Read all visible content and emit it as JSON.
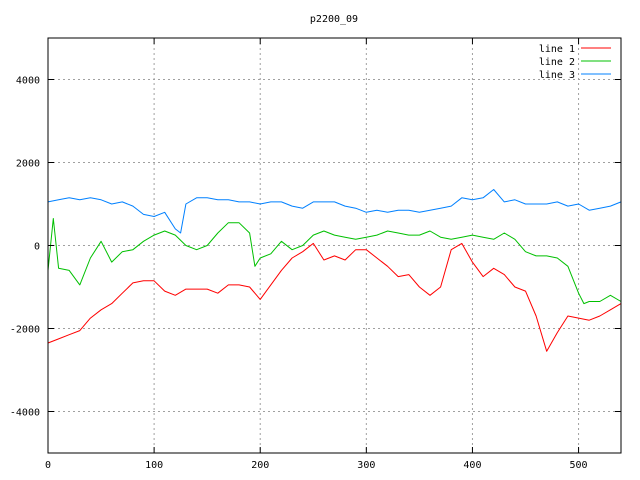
{
  "chart_data": {
    "type": "line",
    "title": "p2200_09",
    "xlabel": "",
    "ylabel": "",
    "xlim": [
      0,
      540
    ],
    "ylim": [
      -5000,
      5000
    ],
    "xticks": [
      0,
      100,
      200,
      300,
      400,
      500
    ],
    "yticks": [
      -4000,
      -2000,
      0,
      2000,
      4000
    ],
    "xtick_labels": [
      "0",
      "100",
      "200",
      "300",
      "400",
      "500"
    ],
    "ytick_labels": [
      "-4000",
      "-2000",
      "0",
      "2000",
      "4000"
    ],
    "grid": true,
    "legend_position": "top-right",
    "series": [
      {
        "name": "line 1",
        "color": "#ff0000",
        "points": [
          [
            0,
            -2350
          ],
          [
            10,
            -2250
          ],
          [
            20,
            -2150
          ],
          [
            30,
            -2050
          ],
          [
            40,
            -1750
          ],
          [
            50,
            -1550
          ],
          [
            60,
            -1400
          ],
          [
            70,
            -1150
          ],
          [
            80,
            -900
          ],
          [
            90,
            -850
          ],
          [
            100,
            -850
          ],
          [
            110,
            -1100
          ],
          [
            120,
            -1200
          ],
          [
            130,
            -1050
          ],
          [
            140,
            -1050
          ],
          [
            150,
            -1050
          ],
          [
            160,
            -1150
          ],
          [
            170,
            -950
          ],
          [
            180,
            -950
          ],
          [
            190,
            -1000
          ],
          [
            200,
            -1300
          ],
          [
            210,
            -950
          ],
          [
            220,
            -600
          ],
          [
            230,
            -300
          ],
          [
            240,
            -150
          ],
          [
            250,
            50
          ],
          [
            260,
            -350
          ],
          [
            270,
            -250
          ],
          [
            280,
            -350
          ],
          [
            290,
            -100
          ],
          [
            300,
            -100
          ],
          [
            310,
            -300
          ],
          [
            320,
            -500
          ],
          [
            330,
            -750
          ],
          [
            340,
            -700
          ],
          [
            350,
            -1000
          ],
          [
            360,
            -1200
          ],
          [
            370,
            -1000
          ],
          [
            380,
            -100
          ],
          [
            390,
            50
          ],
          [
            400,
            -400
          ],
          [
            410,
            -750
          ],
          [
            420,
            -550
          ],
          [
            430,
            -700
          ],
          [
            440,
            -1000
          ],
          [
            450,
            -1100
          ],
          [
            460,
            -1700
          ],
          [
            470,
            -2550
          ],
          [
            480,
            -2100
          ],
          [
            490,
            -1700
          ],
          [
            500,
            -1750
          ],
          [
            510,
            -1800
          ],
          [
            520,
            -1700
          ],
          [
            530,
            -1550
          ],
          [
            540,
            -1400
          ]
        ]
      },
      {
        "name": "line 2",
        "color": "#00c000",
        "points": [
          [
            0,
            -600
          ],
          [
            5,
            650
          ],
          [
            10,
            -550
          ],
          [
            20,
            -600
          ],
          [
            30,
            -950
          ],
          [
            40,
            -300
          ],
          [
            50,
            100
          ],
          [
            60,
            -400
          ],
          [
            70,
            -150
          ],
          [
            80,
            -100
          ],
          [
            90,
            100
          ],
          [
            100,
            250
          ],
          [
            110,
            350
          ],
          [
            120,
            250
          ],
          [
            130,
            0
          ],
          [
            140,
            -100
          ],
          [
            150,
            0
          ],
          [
            160,
            300
          ],
          [
            170,
            550
          ],
          [
            180,
            550
          ],
          [
            190,
            300
          ],
          [
            195,
            -500
          ],
          [
            200,
            -300
          ],
          [
            210,
            -200
          ],
          [
            220,
            100
          ],
          [
            230,
            -100
          ],
          [
            240,
            0
          ],
          [
            250,
            250
          ],
          [
            260,
            350
          ],
          [
            270,
            250
          ],
          [
            280,
            200
          ],
          [
            290,
            150
          ],
          [
            300,
            200
          ],
          [
            310,
            250
          ],
          [
            320,
            350
          ],
          [
            330,
            300
          ],
          [
            340,
            250
          ],
          [
            350,
            250
          ],
          [
            360,
            350
          ],
          [
            370,
            200
          ],
          [
            380,
            150
          ],
          [
            390,
            200
          ],
          [
            400,
            250
          ],
          [
            410,
            200
          ],
          [
            420,
            150
          ],
          [
            430,
            300
          ],
          [
            440,
            150
          ],
          [
            450,
            -150
          ],
          [
            460,
            -250
          ],
          [
            470,
            -250
          ],
          [
            480,
            -300
          ],
          [
            490,
            -500
          ],
          [
            500,
            -1150
          ],
          [
            505,
            -1400
          ],
          [
            510,
            -1350
          ],
          [
            520,
            -1350
          ],
          [
            530,
            -1200
          ],
          [
            540,
            -1350
          ]
        ]
      },
      {
        "name": "line 3",
        "color": "#0080ff",
        "points": [
          [
            0,
            1050
          ],
          [
            10,
            1100
          ],
          [
            20,
            1150
          ],
          [
            30,
            1100
          ],
          [
            40,
            1150
          ],
          [
            50,
            1100
          ],
          [
            60,
            1000
          ],
          [
            70,
            1050
          ],
          [
            80,
            950
          ],
          [
            90,
            750
          ],
          [
            100,
            700
          ],
          [
            110,
            800
          ],
          [
            120,
            400
          ],
          [
            125,
            300
          ],
          [
            130,
            1000
          ],
          [
            140,
            1150
          ],
          [
            150,
            1150
          ],
          [
            160,
            1100
          ],
          [
            170,
            1100
          ],
          [
            180,
            1050
          ],
          [
            190,
            1050
          ],
          [
            200,
            1000
          ],
          [
            210,
            1050
          ],
          [
            220,
            1050
          ],
          [
            230,
            950
          ],
          [
            240,
            900
          ],
          [
            250,
            1050
          ],
          [
            260,
            1050
          ],
          [
            270,
            1050
          ],
          [
            280,
            950
          ],
          [
            290,
            900
          ],
          [
            300,
            800
          ],
          [
            310,
            850
          ],
          [
            320,
            800
          ],
          [
            330,
            850
          ],
          [
            340,
            850
          ],
          [
            350,
            800
          ],
          [
            360,
            850
          ],
          [
            370,
            900
          ],
          [
            380,
            950
          ],
          [
            390,
            1150
          ],
          [
            400,
            1100
          ],
          [
            410,
            1150
          ],
          [
            420,
            1350
          ],
          [
            430,
            1050
          ],
          [
            440,
            1100
          ],
          [
            450,
            1000
          ],
          [
            460,
            1000
          ],
          [
            470,
            1000
          ],
          [
            480,
            1050
          ],
          [
            490,
            950
          ],
          [
            500,
            1000
          ],
          [
            510,
            850
          ],
          [
            520,
            900
          ],
          [
            530,
            950
          ],
          [
            540,
            1050
          ]
        ]
      }
    ]
  }
}
